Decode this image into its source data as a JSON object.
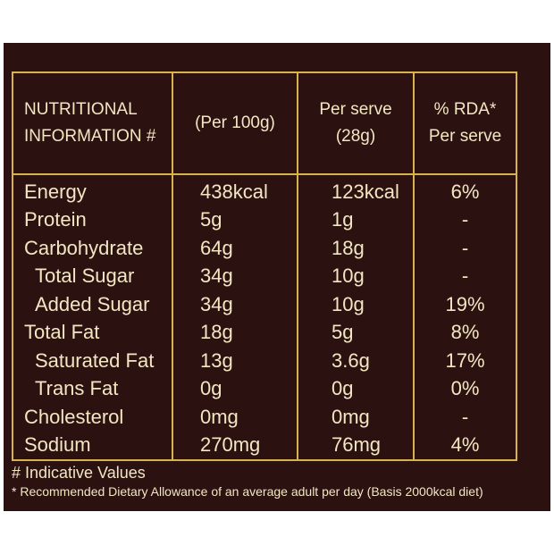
{
  "table": {
    "headers": {
      "nutritional_line1": "NUTRITIONAL",
      "nutritional_line2": "INFORMATION #",
      "per_100g": "(Per 100g)",
      "per_serve_line1": "Per serve",
      "per_serve_line2": "(28g)",
      "rda_line1": "% RDA*",
      "rda_line2": "Per serve"
    },
    "rows": [
      {
        "name": "Energy",
        "per_100g": "438kcal",
        "per_serve": "123kcal",
        "rda": "6%"
      },
      {
        "name": "Protein",
        "per_100g": "5g",
        "per_serve": "1g",
        "rda": "-"
      },
      {
        "name": "Carbohydrate",
        "per_100g": "64g",
        "per_serve": "18g",
        "rda": "-"
      },
      {
        "name": "Total Sugar",
        "per_100g": "34g",
        "per_serve": "10g",
        "rda": "-"
      },
      {
        "name": "Added Sugar",
        "per_100g": "34g",
        "per_serve": "10g",
        "rda": "19%"
      },
      {
        "name": "Total Fat",
        "per_100g": "18g",
        "per_serve": "5g",
        "rda": "8%"
      },
      {
        "name": "Saturated Fat",
        "per_100g": "13g",
        "per_serve": "3.6g",
        "rda": "17%"
      },
      {
        "name": "Trans Fat",
        "per_100g": "0g",
        "per_serve": "0g",
        "rda": "0%"
      },
      {
        "name": "Cholesterol",
        "per_100g": "0mg",
        "per_serve": "0mg",
        "rda": "-"
      },
      {
        "name": "Sodium",
        "per_100g": "270mg",
        "per_serve": "76mg",
        "rda": "4%"
      }
    ]
  },
  "footnotes": {
    "indicative": "# Indicative Values",
    "rda_note": "* Recommended Dietary Allowance of an average adult per day (Basis 2000kcal diet)"
  },
  "colors": {
    "background": "#2b1210",
    "border": "#d8b24c",
    "text": "#f3e6c3"
  }
}
